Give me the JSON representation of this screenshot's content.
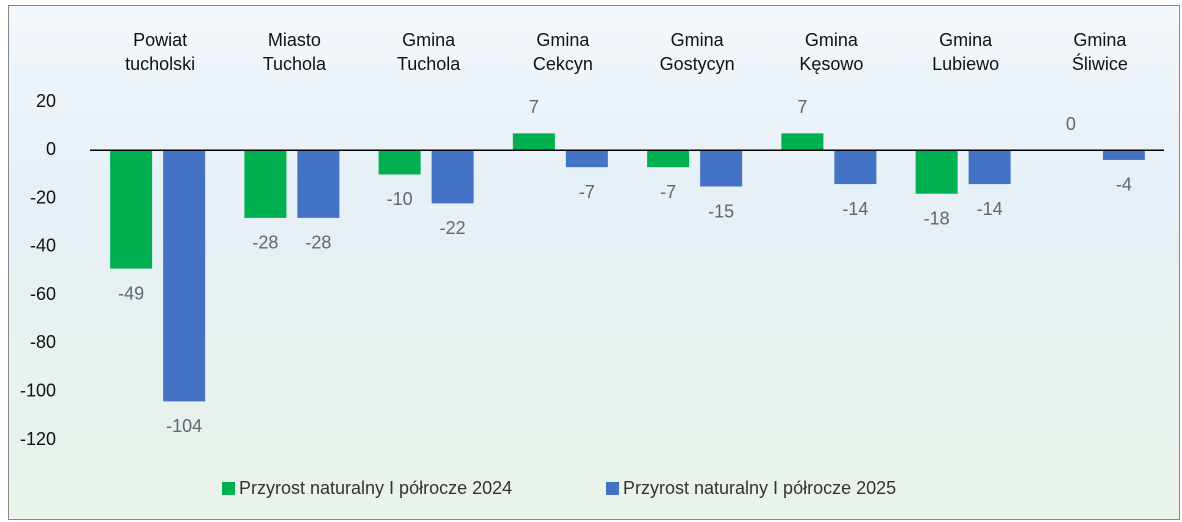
{
  "chart_data": {
    "type": "bar",
    "categories": [
      "Powiat tucholski",
      "Miasto Tuchola",
      "Gmina Tuchola",
      "Gmina Cekcyn",
      "Gmina Gostycyn",
      "Gmina Kęsowo",
      "Gmina Lubiewo",
      "Gmina Śliwice"
    ],
    "series": [
      {
        "name": "Przyrost naturalny I półrocze 2024",
        "color": "#00b050",
        "values": [
          -49,
          -28,
          -10,
          7,
          -7,
          7,
          -18,
          0
        ]
      },
      {
        "name": "Przyrost naturalny I półrocze 2025",
        "color": "#4472c4",
        "values": [
          -104,
          -28,
          -22,
          -7,
          -15,
          -14,
          -14,
          -4
        ]
      }
    ],
    "ylim": [
      -120,
      20
    ],
    "yticks": [
      -120,
      -100,
      -80,
      -60,
      -40,
      -20,
      0,
      20
    ],
    "grid": false,
    "legend": "bottom"
  }
}
